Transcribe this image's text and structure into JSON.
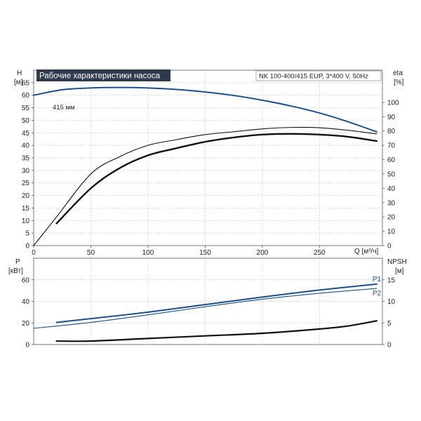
{
  "chart_data": [
    {
      "type": "line",
      "title": "Рабочие характеристики насоса",
      "subtitle": "NK 100-400/415 EUP, 3*400 V, 50Hz",
      "xlabel": "Q [м³/ч]",
      "ylabel_top": "H",
      "ylabel_unit": "[м]",
      "y2label_top": "eta",
      "y2label_unit": "[%]",
      "xlim": [
        0,
        305
      ],
      "ylim": [
        0,
        70
      ],
      "y2lim": [
        0,
        122.5
      ],
      "x_ticks": [
        0,
        50,
        100,
        150,
        200,
        250
      ],
      "y_ticks": [
        0,
        5,
        10,
        15,
        20,
        25,
        30,
        35,
        40,
        45,
        50,
        55,
        60,
        65
      ],
      "y2_ticks": [
        0,
        10,
        20,
        30,
        40,
        50,
        60,
        70,
        80,
        90,
        100
      ],
      "grid": true,
      "colors": {
        "head": "#1b4f8a",
        "eta": "#111111",
        "accent": "#2f3b4d"
      },
      "annotation": "415 мм",
      "series": [
        {
          "name": "H",
          "axis": "left",
          "x": [
            0,
            25,
            50,
            75,
            100,
            125,
            150,
            175,
            200,
            225,
            250,
            275,
            300
          ],
          "y": [
            60,
            62.2,
            62.9,
            63.1,
            62.9,
            62.3,
            61.3,
            59.9,
            58,
            55.7,
            52.9,
            49.4,
            45.4
          ]
        },
        {
          "name": "eta",
          "axis": "right",
          "x": [
            0,
            20,
            50,
            75,
            100,
            125,
            150,
            175,
            200,
            225,
            250,
            275,
            300
          ],
          "y": [
            0,
            20,
            50,
            62,
            70,
            74,
            77.5,
            79.5,
            81.5,
            82.5,
            82.3,
            80.5,
            78
          ]
        },
        {
          "name": "eta",
          "axis": "right",
          "x": [
            20,
            50,
            75,
            100,
            125,
            150,
            175,
            200,
            225,
            250,
            275,
            300
          ],
          "y": [
            15.5,
            40,
            54,
            63,
            68,
            72.5,
            75.5,
            77.5,
            78,
            77.5,
            76,
            73
          ]
        }
      ]
    },
    {
      "type": "line",
      "ylabel_top": "P",
      "ylabel_unit": "[кВт]",
      "y2label_top": "NPSH",
      "y2label_unit": "[м]",
      "xlim": [
        0,
        305
      ],
      "ylim": [
        0,
        80
      ],
      "y2lim": [
        0,
        20
      ],
      "y_ticks": [
        0,
        20,
        40,
        60
      ],
      "y2_ticks": [
        0,
        5,
        10,
        15
      ],
      "grid": true,
      "colors": {
        "power": "#1b4f8a",
        "npsh": "#111111"
      },
      "series": [
        {
          "name": "P1",
          "axis": "left",
          "x": [
            20,
            50,
            100,
            150,
            200,
            250,
            300
          ],
          "y": [
            20.5,
            24,
            30,
            37,
            44,
            50.5,
            56
          ]
        },
        {
          "name": "P2",
          "axis": "left",
          "x": [
            0,
            50,
            100,
            150,
            200,
            250,
            300
          ],
          "y": [
            15,
            20.5,
            27.5,
            35,
            42,
            47.5,
            52
          ]
        },
        {
          "name": "NPSH",
          "axis": "right",
          "x": [
            20,
            50,
            100,
            150,
            200,
            250,
            275,
            300
          ],
          "y": [
            0.8,
            0.8,
            1.4,
            2.0,
            2.6,
            3.6,
            4.3,
            5.5
          ]
        }
      ]
    }
  ]
}
